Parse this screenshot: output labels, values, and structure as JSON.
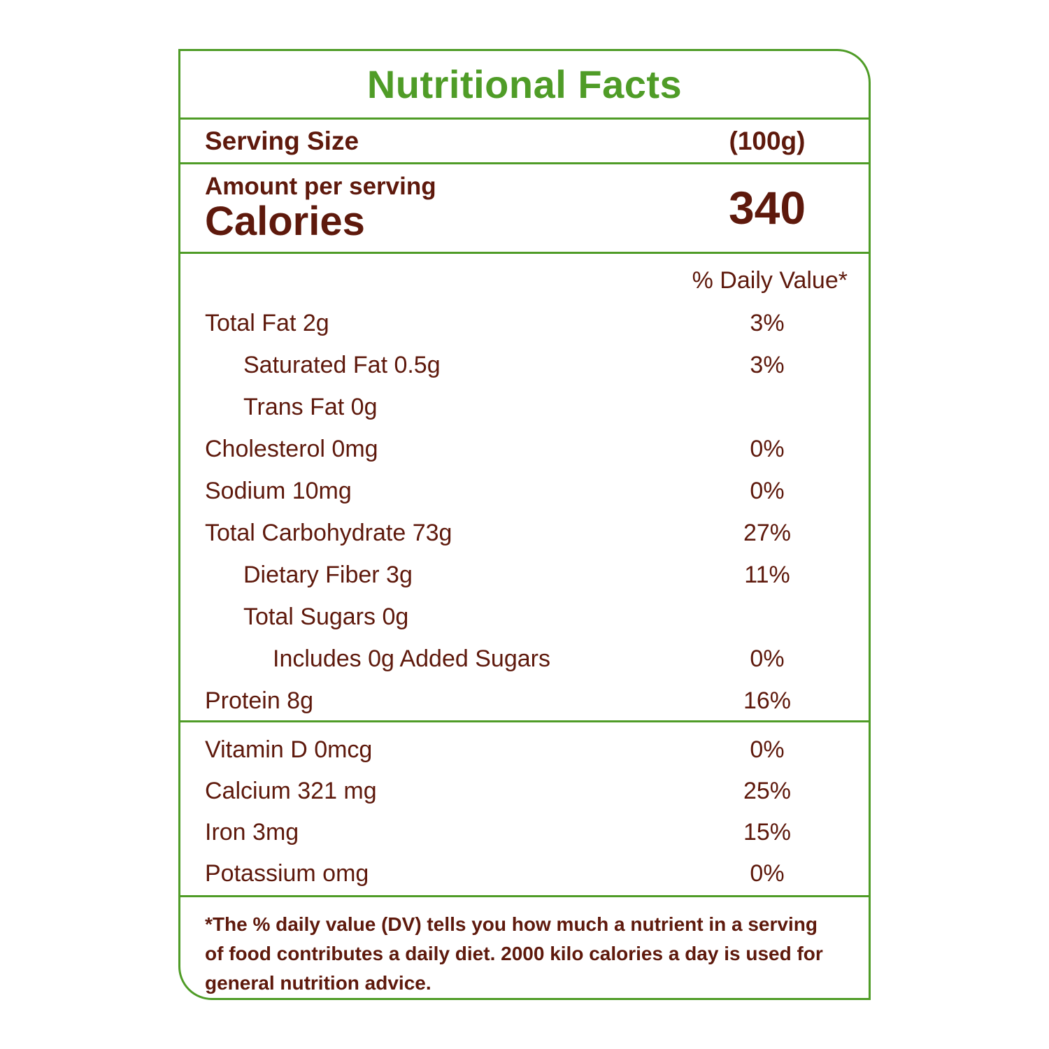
{
  "label": {
    "title": "Nutritional Facts",
    "serving": {
      "label": "Serving Size",
      "value": "(100g)"
    },
    "calories": {
      "amount_label": "Amount per serving",
      "label": "Calories",
      "value": "340"
    },
    "daily_value_header": "% Daily Value*",
    "nutrients": [
      {
        "name": "Total Fat 2g",
        "dv": "3%"
      },
      {
        "name": "Saturated Fat 0.5g",
        "dv": "3%"
      },
      {
        "name": "Trans Fat 0g",
        "dv": ""
      },
      {
        "name": "Cholesterol 0mg",
        "dv": "0%"
      },
      {
        "name": "Sodium 10mg",
        "dv": "0%"
      },
      {
        "name": "Total Carbohydrate 73g",
        "dv": "27%"
      },
      {
        "name": "Dietary Fiber 3g",
        "dv": "11%"
      },
      {
        "name": "Total Sugars 0g",
        "dv": ""
      },
      {
        "name": "Includes 0g Added Sugars",
        "dv": "0%"
      },
      {
        "name": "Protein 8g",
        "dv": "16%"
      }
    ],
    "vitamins": [
      {
        "name": "Vitamin D 0mcg",
        "dv": "0%"
      },
      {
        "name": "Calcium 321 mg",
        "dv": "25%"
      },
      {
        "name": "Iron 3mg",
        "dv": "15%"
      },
      {
        "name": "Potassium omg",
        "dv": "0%"
      }
    ],
    "footnote": "*The % daily value (DV) tells you how much a nutrient in a serving of food contributes a daily diet. 2000 kilo calories a day is used for general nutrition advice.",
    "colors": {
      "green": "#4f9c27",
      "text": "#5e190c"
    }
  }
}
